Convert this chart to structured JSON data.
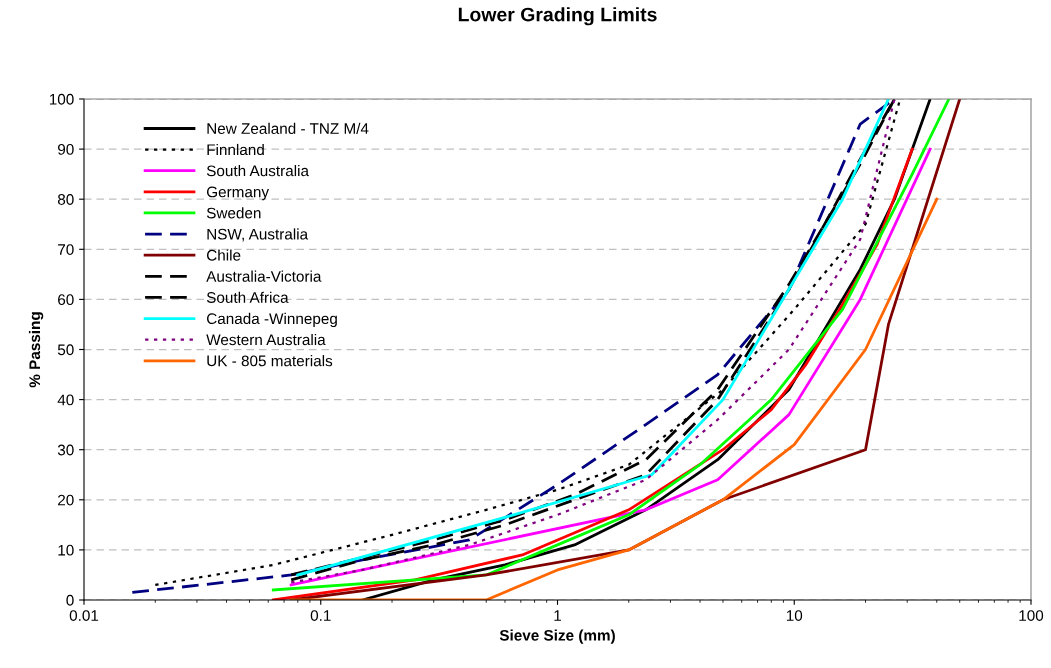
{
  "chart_data": {
    "type": "line",
    "title": "Lower Grading Limits",
    "xlabel": "Sieve Size (mm)",
    "ylabel": "% Passing",
    "log": "x",
    "xlim": [
      0.01,
      100
    ],
    "xticks": [
      0.01,
      0.1,
      1,
      10,
      100
    ],
    "ylim": [
      0,
      100
    ],
    "yticks": [
      0,
      10,
      20,
      30,
      40,
      50,
      60,
      70,
      80,
      90,
      100
    ],
    "grid": "y",
    "legend": "top left",
    "marker": "none",
    "series": [
      {
        "name": "New Zealand - TNZ M/4",
        "color": "#000000",
        "line_style": "solid",
        "x": [
          0.15,
          0.3,
          0.6,
          1.18,
          2.36,
          4.75,
          9.5,
          19,
          26.5,
          37.5
        ],
        "values": [
          0,
          4,
          7,
          11,
          18,
          28,
          42,
          66,
          80,
          100
        ]
      },
      {
        "name": "Finnland",
        "color": "#000000",
        "line_style": "dotted",
        "x": [
          0.02,
          0.063,
          0.2,
          0.5,
          1,
          2,
          5,
          10,
          20,
          28
        ],
        "values": [
          3,
          7,
          13,
          18,
          22,
          27,
          42,
          58,
          75,
          100
        ]
      },
      {
        "name": "South Australia",
        "color": "#ff00ff",
        "line_style": "solid",
        "x": [
          0.075,
          2.36,
          4.75,
          9.5,
          19,
          37.5
        ],
        "values": [
          3,
          18,
          24,
          37,
          60,
          90
        ]
      },
      {
        "name": "Germany",
        "color": "#ff0000",
        "line_style": "solid",
        "x": [
          0.063,
          0.25,
          0.71,
          2,
          5,
          8,
          11.2,
          16,
          22.4,
          31.5
        ],
        "values": [
          0,
          4,
          9,
          18,
          30,
          38,
          47,
          59,
          71,
          90
        ]
      },
      {
        "name": "Sweden",
        "color": "#00ff00",
        "line_style": "solid",
        "x": [
          0.063,
          0.5,
          1,
          2,
          4,
          8,
          16,
          31.5,
          45
        ],
        "values": [
          2,
          5,
          11,
          17,
          27,
          40,
          58,
          85,
          100
        ]
      },
      {
        "name": "NSW, Australia",
        "color": "#000080",
        "line_style": "dashed",
        "x": [
          0.016,
          0.075,
          0.15,
          0.425,
          1,
          2.36,
          4.75,
          9.5,
          19,
          26.5
        ],
        "values": [
          1.5,
          5,
          8,
          12,
          23,
          35,
          45,
          62,
          95,
          100
        ]
      },
      {
        "name": "Chile",
        "color": "#800000",
        "line_style": "solid",
        "x": [
          0.075,
          0.5,
          2,
          5,
          20,
          25,
          50
        ],
        "values": [
          0,
          5,
          10,
          20,
          30,
          55,
          100
        ]
      },
      {
        "name": "Australia-Victoria",
        "color": "#000000",
        "line_style": "dashed",
        "x": [
          0.075,
          0.15,
          0.3,
          0.6,
          1.18,
          2.36,
          4.75,
          9.5,
          19,
          26.5
        ],
        "values": [
          4,
          8,
          11,
          15,
          20,
          25,
          40,
          62,
          88,
          100
        ]
      },
      {
        "name": "South Africa",
        "color": "#000000",
        "line_style": "dashed",
        "x": [
          0.075,
          0.3,
          0.6,
          1.18,
          2.36,
          4.75,
          9.5,
          19,
          26.5
        ],
        "values": [
          5,
          12,
          16,
          21,
          28,
          42,
          63,
          87,
          100
        ]
      },
      {
        "name": "Canada -Winnepeg",
        "color": "#00ffff",
        "line_style": "solid",
        "x": [
          0.08,
          0.6,
          2.5,
          5,
          16,
          25
        ],
        "values": [
          5,
          16.5,
          25,
          40,
          80,
          100
        ]
      },
      {
        "name": "Western Australia",
        "color": "#800080",
        "line_style": "dotted",
        "x": [
          0.075,
          0.15,
          0.425,
          1,
          2.36,
          4.75,
          9.5,
          19,
          26.5
        ],
        "values": [
          3.5,
          6,
          11,
          17,
          24,
          36,
          50,
          72,
          100
        ]
      },
      {
        "name": "UK - 805 materials",
        "color": "#ff6600",
        "line_style": "solid",
        "x": [
          0.075,
          0.5,
          1,
          2,
          5,
          10,
          20,
          40
        ],
        "values": [
          0,
          0,
          6,
          10,
          20,
          31,
          50,
          80
        ]
      }
    ]
  }
}
